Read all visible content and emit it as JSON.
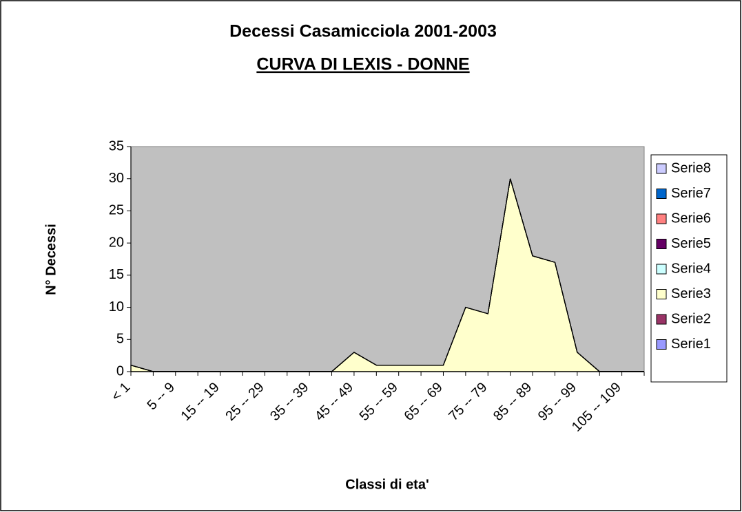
{
  "chart_data": {
    "type": "area",
    "stacked": true,
    "title": "Decessi Casamicciola 2001-2003",
    "subtitle": "CURVA DI LEXIS - DONNE",
    "x_label": "Classi di eta'",
    "y_label": "N° Decessi",
    "categories": [
      "< 1",
      null,
      "5 -- 9",
      null,
      "15 -- 19",
      null,
      "25 -- 29",
      null,
      "35 -- 39",
      null,
      "45 -- 49",
      null,
      "55 -- 59",
      null,
      "65 -- 69",
      null,
      "75 -- 79",
      null,
      "85 -- 89",
      null,
      "95 -- 99",
      null,
      "105 -- 109",
      null
    ],
    "series": [
      {
        "name": "Serie1",
        "color": "#9999ff",
        "values": [
          0,
          0,
          0,
          0,
          0,
          0,
          0,
          0,
          0,
          0,
          0,
          0,
          0,
          0,
          0,
          0,
          0,
          0,
          0,
          0,
          0,
          0,
          0,
          0
        ]
      },
      {
        "name": "Serie2",
        "color": "#993366",
        "values": [
          0,
          0,
          0,
          0,
          0,
          0,
          0,
          0,
          0,
          0,
          0,
          0,
          0,
          0,
          0,
          0,
          0,
          0,
          0,
          0,
          0,
          0,
          0,
          0
        ]
      },
      {
        "name": "Serie3",
        "color": "#ffffcc",
        "values": [
          1,
          0,
          0,
          0,
          0,
          0,
          0,
          0,
          0,
          0,
          3,
          1,
          1,
          1,
          1,
          10,
          9,
          30,
          18,
          17,
          3,
          0,
          0,
          0
        ]
      },
      {
        "name": "Serie4",
        "color": "#ccffff",
        "values": [
          0,
          0,
          0,
          0,
          0,
          0,
          0,
          0,
          0,
          0,
          0,
          0,
          0,
          0,
          0,
          0,
          0,
          0,
          0,
          0,
          0,
          0,
          0,
          0
        ]
      },
      {
        "name": "Serie5",
        "color": "#660066",
        "values": [
          0,
          0,
          0,
          0,
          0,
          0,
          0,
          0,
          0,
          0,
          0,
          0,
          0,
          0,
          0,
          0,
          0,
          0,
          0,
          0,
          0,
          0,
          0,
          0
        ]
      },
      {
        "name": "Serie6",
        "color": "#ff8080",
        "values": [
          0,
          0,
          0,
          0,
          0,
          0,
          0,
          0,
          0,
          0,
          0,
          0,
          0,
          0,
          0,
          0,
          0,
          0,
          0,
          0,
          0,
          0,
          0,
          0
        ]
      },
      {
        "name": "Serie7",
        "color": "#0066cc",
        "values": [
          0,
          0,
          0,
          0,
          0,
          0,
          0,
          0,
          0,
          0,
          0,
          0,
          0,
          0,
          0,
          0,
          0,
          0,
          0,
          0,
          0,
          0,
          0,
          0
        ]
      },
      {
        "name": "Serie8",
        "color": "#ccccff",
        "values": [
          0,
          0,
          0,
          0,
          0,
          0,
          0,
          0,
          0,
          0,
          0,
          0,
          0,
          0,
          0,
          0,
          0,
          0,
          0,
          0,
          0,
          0,
          0,
          0
        ]
      }
    ],
    "ylim": [
      0,
      35
    ],
    "yticks": [
      0,
      5,
      10,
      15,
      20,
      25,
      30,
      35
    ],
    "plot_background": "#c0c0c0",
    "legend": "right"
  }
}
